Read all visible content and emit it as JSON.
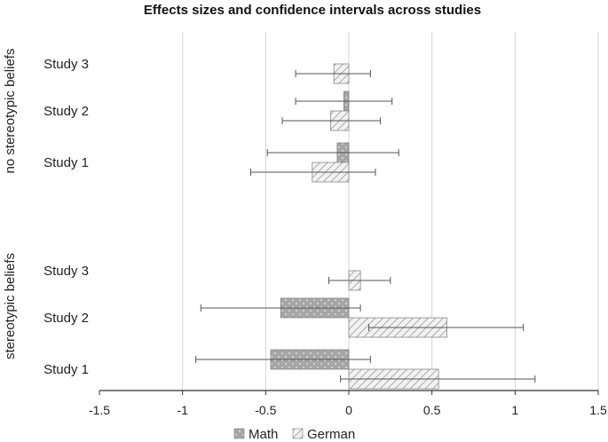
{
  "chart_data": {
    "type": "bar",
    "orientation": "horizontal",
    "title": "Effects sizes and confidence intervals across studies",
    "xlim": [
      -1.5,
      1.5
    ],
    "xticks": [
      -1.5,
      -1,
      -0.5,
      0,
      0.5,
      1,
      1.5
    ],
    "xtick_labels": [
      "-1.5",
      "-1",
      "-0.5",
      "0",
      "0.5",
      "1",
      "1.5"
    ],
    "grid": true,
    "legend": "bottom-center",
    "series": [
      {
        "name": "Math",
        "color": "#a6a6a6",
        "pattern": "dots"
      },
      {
        "name": "German",
        "color": "#e4e4e4",
        "pattern": "diagonal"
      }
    ],
    "groups": [
      {
        "label": "no stereotypic beliefs",
        "studies": [
          {
            "label": "Study 3",
            "Math": null,
            "German": {
              "value": -0.09,
              "ci": [
                -0.32,
                0.13
              ]
            }
          },
          {
            "label": "Study 2",
            "Math": {
              "value": -0.03,
              "ci": [
                -0.32,
                0.26
              ]
            },
            "German": {
              "value": -0.11,
              "ci": [
                -0.4,
                0.19
              ]
            }
          },
          {
            "label": "Study 1",
            "Math": {
              "value": -0.07,
              "ci": [
                -0.49,
                0.3
              ]
            },
            "German": {
              "value": -0.22,
              "ci": [
                -0.59,
                0.16
              ]
            }
          }
        ]
      },
      {
        "label": "stereotypic beliefs",
        "studies": [
          {
            "label": "Study 3",
            "Math": null,
            "German": {
              "value": 0.07,
              "ci": [
                -0.12,
                0.25
              ]
            }
          },
          {
            "label": "Study 2",
            "Math": {
              "value": -0.41,
              "ci": [
                -0.89,
                0.07
              ]
            },
            "German": {
              "value": 0.59,
              "ci": [
                0.12,
                1.05
              ]
            }
          },
          {
            "label": "Study 1",
            "Math": {
              "value": -0.47,
              "ci": [
                -0.92,
                0.13
              ]
            },
            "German": {
              "value": 0.54,
              "ci": [
                -0.05,
                1.12
              ]
            }
          }
        ]
      }
    ]
  }
}
